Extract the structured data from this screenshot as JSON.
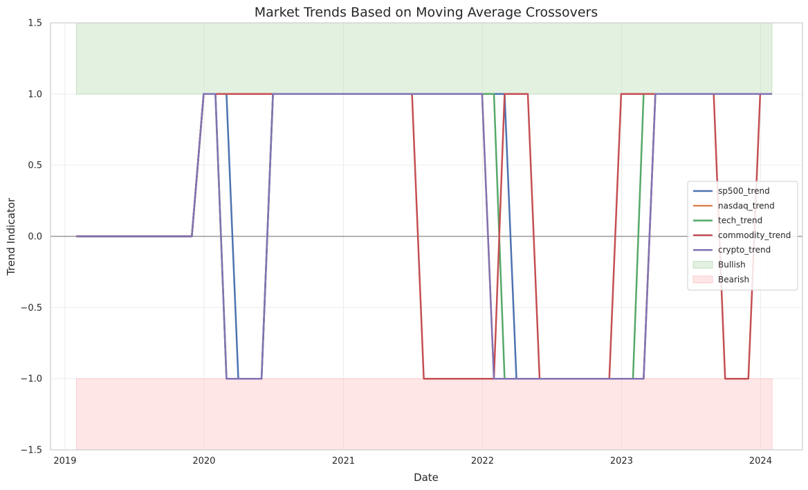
{
  "chart_data": {
    "type": "line",
    "title": "Market Trends Based on Moving Average Crossovers",
    "xlabel": "Date",
    "ylabel": "Trend Indicator",
    "xlim": [
      "2018-11-24",
      "2024-04-20"
    ],
    "ylim": [
      -1.5,
      1.5
    ],
    "yticks": [
      -1.5,
      -1.0,
      -0.5,
      0.0,
      0.5,
      1.0,
      1.5
    ],
    "ytick_labels": [
      "−1.5",
      "−1.0",
      "−0.5",
      "0.0",
      "0.5",
      "1.0",
      "1.5"
    ],
    "xticks": [
      "2019-01-01",
      "2020-01-01",
      "2021-01-01",
      "2022-01-01",
      "2023-01-01",
      "2024-01-01"
    ],
    "xtick_labels": [
      "2019",
      "2020",
      "2021",
      "2022",
      "2023",
      "2024"
    ],
    "grid": true,
    "legend_position": "center-right",
    "reference_line": {
      "y": 0.0,
      "color": "#808080"
    },
    "bands": [
      {
        "name": "Bullish",
        "y_from": 1.0,
        "y_to": 1.5,
        "x_from": "2019-01-31",
        "x_to": "2024-01-31",
        "color": "#b8dcb4"
      },
      {
        "name": "Bearish",
        "y_from": -1.5,
        "y_to": -1.0,
        "x_from": "2019-01-31",
        "x_to": "2024-01-31",
        "color": "#fdc0c4"
      }
    ],
    "series": [
      {
        "name": "sp500_trend",
        "color": "#4c72b0",
        "points": [
          [
            "2019-01-31",
            0
          ],
          [
            "2019-11-30",
            0
          ],
          [
            "2019-12-31",
            1
          ],
          [
            "2020-02-29",
            1
          ],
          [
            "2020-03-31",
            -1
          ],
          [
            "2020-05-31",
            -1
          ],
          [
            "2020-06-30",
            1
          ],
          [
            "2022-02-28",
            1
          ],
          [
            "2022-03-31",
            -1
          ],
          [
            "2023-02-28",
            -1
          ],
          [
            "2023-03-31",
            1
          ],
          [
            "2024-01-31",
            1
          ]
        ]
      },
      {
        "name": "nasdaq_trend",
        "color": "#dd8452",
        "points": [
          [
            "2019-01-31",
            0
          ],
          [
            "2019-11-30",
            0
          ],
          [
            "2019-12-31",
            1
          ],
          [
            "2020-01-31",
            1
          ],
          [
            "2020-02-29",
            -1
          ],
          [
            "2020-05-31",
            -1
          ],
          [
            "2020-06-30",
            1
          ],
          [
            "2021-12-31",
            1
          ],
          [
            "2022-01-31",
            -1
          ],
          [
            "2023-02-28",
            -1
          ],
          [
            "2023-03-31",
            1
          ],
          [
            "2024-01-31",
            1
          ]
        ]
      },
      {
        "name": "tech_trend",
        "color": "#55a868",
        "points": [
          [
            "2019-01-31",
            0
          ],
          [
            "2019-11-30",
            0
          ],
          [
            "2019-12-31",
            1
          ],
          [
            "2020-01-31",
            1
          ],
          [
            "2020-02-29",
            -1
          ],
          [
            "2020-05-31",
            -1
          ],
          [
            "2020-06-30",
            1
          ],
          [
            "2022-01-31",
            1
          ],
          [
            "2022-02-28",
            -1
          ],
          [
            "2023-01-31",
            -1
          ],
          [
            "2023-02-28",
            1
          ],
          [
            "2024-01-31",
            1
          ]
        ]
      },
      {
        "name": "commodity_trend",
        "color": "#c44e52",
        "points": [
          [
            "2019-01-31",
            0
          ],
          [
            "2019-11-30",
            0
          ],
          [
            "2019-12-31",
            1
          ],
          [
            "2021-06-30",
            1
          ],
          [
            "2021-07-31",
            -1
          ],
          [
            "2022-01-31",
            -1
          ],
          [
            "2022-02-28",
            1
          ],
          [
            "2022-04-30",
            1
          ],
          [
            "2022-05-31",
            -1
          ],
          [
            "2022-11-30",
            -1
          ],
          [
            "2022-12-31",
            1
          ],
          [
            "2023-08-31",
            1
          ],
          [
            "2023-09-30",
            -1
          ],
          [
            "2023-11-30",
            -1
          ],
          [
            "2023-12-31",
            1
          ],
          [
            "2024-01-31",
            1
          ]
        ]
      },
      {
        "name": "crypto_trend",
        "color": "#8172b3",
        "points": [
          [
            "2019-01-31",
            0
          ],
          [
            "2019-11-30",
            0
          ],
          [
            "2019-12-31",
            1
          ],
          [
            "2020-01-31",
            1
          ],
          [
            "2020-02-29",
            -1
          ],
          [
            "2020-05-31",
            -1
          ],
          [
            "2020-06-30",
            1
          ],
          [
            "2021-12-31",
            1
          ],
          [
            "2022-01-31",
            -1
          ],
          [
            "2023-02-28",
            -1
          ],
          [
            "2023-03-31",
            1
          ],
          [
            "2024-01-31",
            1
          ]
        ]
      }
    ]
  }
}
